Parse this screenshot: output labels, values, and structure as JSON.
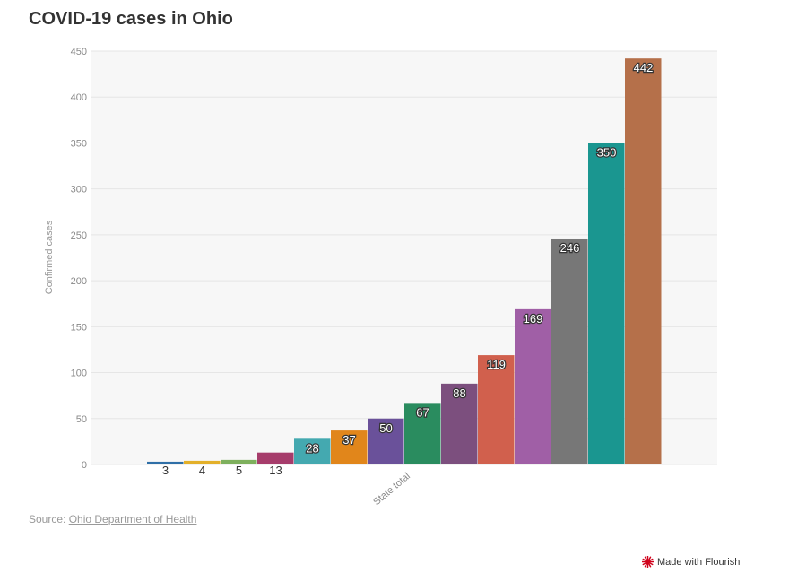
{
  "title": "COVID-19 cases in Ohio",
  "source": {
    "prefix": "Source: ",
    "link_text": "Ohio Department of Health"
  },
  "branding": {
    "label": "Made with Flourish",
    "icon": "flourish-logo-icon",
    "icon_color": "#d0021b"
  },
  "chart_data": {
    "type": "bar",
    "title": "COVID-19 cases in Ohio",
    "xlabel": "",
    "ylabel": "Confirmed cases",
    "ylim": [
      0,
      450
    ],
    "yticks": [
      0,
      50,
      100,
      150,
      200,
      250,
      300,
      350,
      400,
      450
    ],
    "x_category_label": "State total",
    "grid": true,
    "values": [
      3,
      4,
      5,
      13,
      28,
      37,
      50,
      67,
      88,
      119,
      169,
      246,
      350,
      442
    ],
    "colors": [
      "#2f6fa7",
      "#e3b02a",
      "#7eb05d",
      "#a63c6b",
      "#44a9b0",
      "#e1861b",
      "#6a519a",
      "#2a8c5f",
      "#7c4f7e",
      "#d1604d",
      "#a05fa6",
      "#777777",
      "#1a9690",
      "#b5704a"
    ]
  }
}
